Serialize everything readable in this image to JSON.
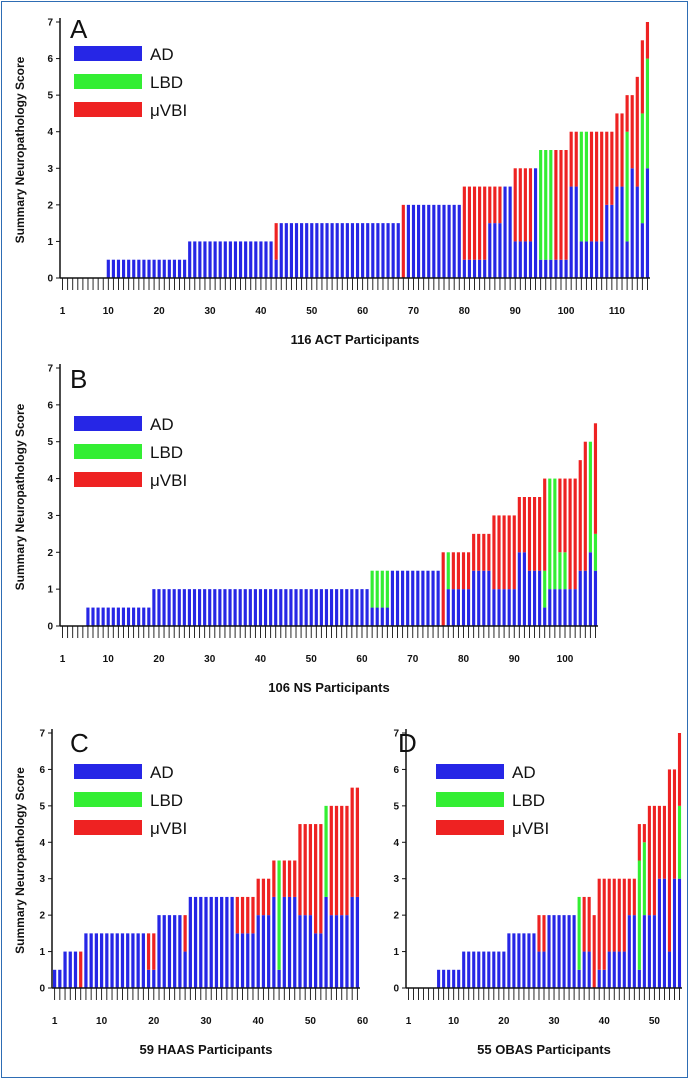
{
  "colors": {
    "AD": "#2626e6",
    "LBD": "#33ee33",
    "uVBI": "#ee2222"
  },
  "chart_data": [
    {
      "type": "bar",
      "panel": "A",
      "xlabel": "116 ACT Participants",
      "ylabel": "Summary Neuropathology Score",
      "legend": [
        "AD",
        "LBD",
        "μVBI"
      ],
      "ylim": [
        0,
        7
      ],
      "yticks": [
        0,
        1,
        2,
        3,
        4,
        5,
        6,
        7
      ],
      "n": 116,
      "xticks": [
        1,
        10,
        20,
        30,
        40,
        50,
        60,
        70,
        80,
        90,
        100,
        110
      ],
      "segments": [
        [
          1,
          9,
          0,
          0,
          0
        ],
        [
          10,
          25,
          0.5,
          0,
          0
        ],
        [
          26,
          42,
          1,
          0,
          0
        ],
        [
          43,
          43,
          0.5,
          0,
          1
        ],
        [
          44,
          67,
          1.5,
          0,
          0
        ],
        [
          68,
          68,
          0,
          0,
          2
        ],
        [
          69,
          79,
          2,
          0,
          0
        ],
        [
          80,
          80,
          0.5,
          0,
          2
        ],
        [
          81,
          84,
          0.5,
          0,
          2
        ],
        [
          85,
          87,
          1.5,
          0,
          1
        ],
        [
          88,
          89,
          2.5,
          0,
          0
        ],
        [
          90,
          92,
          1,
          0,
          2
        ],
        [
          93,
          93,
          1,
          0,
          2
        ],
        [
          94,
          94,
          3,
          0,
          0
        ],
        [
          95,
          97,
          0.5,
          3,
          0
        ],
        [
          98,
          100,
          0.5,
          0,
          3
        ],
        [
          101,
          102,
          2.5,
          0,
          1.5
        ],
        [
          103,
          104,
          1,
          3,
          0
        ],
        [
          105,
          107,
          1,
          0,
          3
        ],
        [
          108,
          109,
          2,
          0,
          2
        ],
        [
          110,
          111,
          2.5,
          0,
          2
        ],
        [
          112,
          112,
          1,
          3,
          1
        ],
        [
          113,
          113,
          3,
          0,
          2
        ],
        [
          114,
          114,
          2.5,
          0,
          3
        ],
        [
          115,
          115,
          1.5,
          3,
          2
        ],
        [
          116,
          116,
          3,
          3,
          1
        ]
      ]
    },
    {
      "type": "bar",
      "panel": "B",
      "xlabel": "106 NS Participants",
      "ylabel": "Summary Neuropathology Score",
      "legend": [
        "AD",
        "LBD",
        "μVBI"
      ],
      "ylim": [
        0,
        7
      ],
      "yticks": [
        0,
        1,
        2,
        3,
        4,
        5,
        6,
        7
      ],
      "n": 106,
      "xticks": [
        1,
        10,
        20,
        30,
        40,
        50,
        60,
        70,
        80,
        90,
        100
      ],
      "segments": [
        [
          1,
          5,
          0,
          0,
          0
        ],
        [
          6,
          18,
          0.5,
          0,
          0
        ],
        [
          19,
          61,
          1,
          0,
          0
        ],
        [
          62,
          65,
          0.5,
          1,
          0
        ],
        [
          66,
          75,
          1.5,
          0,
          0
        ],
        [
          76,
          76,
          0,
          0,
          2
        ],
        [
          77,
          77,
          1,
          1,
          0
        ],
        [
          78,
          81,
          1,
          0,
          1
        ],
        [
          82,
          85,
          1.5,
          0,
          1
        ],
        [
          86,
          87,
          1,
          0,
          2
        ],
        [
          88,
          90,
          1,
          0,
          2
        ],
        [
          91,
          92,
          2,
          0,
          1.5
        ],
        [
          93,
          93,
          1.5,
          0,
          2
        ],
        [
          94,
          95,
          1.5,
          0,
          2
        ],
        [
          96,
          96,
          0.5,
          1,
          2.5
        ],
        [
          97,
          98,
          1,
          3,
          0
        ],
        [
          99,
          100,
          1,
          1,
          2
        ],
        [
          101,
          102,
          1,
          0,
          3
        ],
        [
          103,
          103,
          1.5,
          0,
          3
        ],
        [
          104,
          104,
          1.5,
          0,
          3.5
        ],
        [
          105,
          105,
          2,
          3,
          0
        ],
        [
          106,
          106,
          1.5,
          1,
          3
        ]
      ]
    },
    {
      "type": "bar",
      "panel": "C",
      "xlabel": "59 HAAS Participants",
      "ylabel": "Summary Neuropathology Score",
      "legend": [
        "AD",
        "LBD",
        "μVBI"
      ],
      "ylim": [
        0,
        7
      ],
      "yticks": [
        0,
        1,
        2,
        3,
        4,
        5,
        6,
        7
      ],
      "n": 59,
      "xticks": [
        1,
        10,
        20,
        30,
        40,
        50,
        60
      ],
      "segments": [
        [
          1,
          2,
          0.5,
          0,
          0
        ],
        [
          3,
          5,
          1,
          0,
          0
        ],
        [
          6,
          6,
          0,
          0,
          1
        ],
        [
          7,
          18,
          1.5,
          0,
          0
        ],
        [
          19,
          20,
          0.5,
          0,
          1
        ],
        [
          21,
          25,
          2,
          0,
          0
        ],
        [
          26,
          26,
          1,
          0,
          1
        ],
        [
          27,
          35,
          2.5,
          0,
          0
        ],
        [
          36,
          39,
          1.5,
          0,
          1
        ],
        [
          40,
          42,
          2,
          0,
          1
        ],
        [
          43,
          43,
          2.5,
          0,
          1
        ],
        [
          44,
          44,
          0.5,
          3,
          0
        ],
        [
          45,
          47,
          2.5,
          0,
          1
        ],
        [
          48,
          50,
          2,
          0,
          2.5
        ],
        [
          51,
          52,
          1.5,
          0,
          3
        ],
        [
          53,
          53,
          2.5,
          2.5,
          0
        ],
        [
          54,
          54,
          2,
          0,
          3
        ],
        [
          55,
          57,
          2,
          0,
          3
        ],
        [
          58,
          59,
          2.5,
          0,
          3
        ]
      ]
    },
    {
      "type": "bar",
      "panel": "D",
      "xlabel": "55 OBAS Participants",
      "ylabel": "Summary Neuropathology Score",
      "legend": [
        "AD",
        "LBD",
        "μVBI"
      ],
      "ylim": [
        0,
        7
      ],
      "yticks": [
        0,
        1,
        2,
        3,
        4,
        5,
        6,
        7
      ],
      "n": 55,
      "xticks": [
        1,
        10,
        20,
        30,
        40,
        50
      ],
      "segments": [
        [
          1,
          6,
          0,
          0,
          0
        ],
        [
          7,
          11,
          0.5,
          0,
          0
        ],
        [
          12,
          20,
          1,
          0,
          0
        ],
        [
          21,
          24,
          1.5,
          0,
          0
        ],
        [
          25,
          26,
          1.5,
          0,
          0
        ],
        [
          27,
          28,
          1,
          0,
          1
        ],
        [
          29,
          34,
          2,
          0,
          0
        ],
        [
          35,
          35,
          0.5,
          2,
          0
        ],
        [
          36,
          37,
          1,
          0,
          1.5
        ],
        [
          38,
          38,
          0,
          0,
          2
        ],
        [
          39,
          40,
          0.5,
          0,
          2.5
        ],
        [
          41,
          42,
          1,
          0,
          2
        ],
        [
          43,
          44,
          1,
          0,
          2
        ],
        [
          45,
          46,
          2,
          0,
          1
        ],
        [
          47,
          47,
          0.5,
          3,
          1
        ],
        [
          48,
          48,
          2,
          2,
          0.5
        ],
        [
          49,
          50,
          2,
          0,
          3
        ],
        [
          51,
          52,
          3,
          0,
          2
        ],
        [
          53,
          53,
          1,
          0,
          5
        ],
        [
          54,
          54,
          3,
          0,
          3
        ],
        [
          55,
          55,
          3,
          2,
          2
        ]
      ]
    }
  ]
}
